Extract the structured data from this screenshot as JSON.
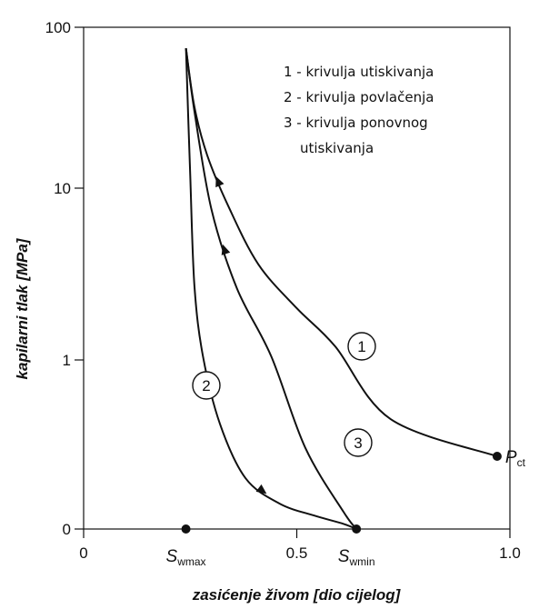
{
  "chart_data": {
    "type": "line",
    "xlabel": "zasićenje živom [dio cijelog]",
    "ylabel": "kapilarni tlak [MPa]",
    "xlim": [
      0,
      1.0
    ],
    "x_ticks": [
      "0",
      "0.5",
      "1.0"
    ],
    "y_ticks": [
      "0",
      "1",
      "10",
      "100"
    ],
    "y_scale": "log",
    "grid": false,
    "legend_position": "top-right",
    "legend": [
      "1 - krivulja utiskivanja",
      "2 - krivulja povlačenja",
      "3 - krivulja ponovnog",
      "utiskivanja"
    ],
    "series": [
      {
        "label": "1",
        "x": [
          0.97,
          0.72,
          0.59,
          0.5,
          0.41,
          0.34,
          0.29,
          0.26,
          0.24
        ],
        "y": [
          0.43,
          0.65,
          1.2,
          2.0,
          3.6,
          7.8,
          16,
          32,
          74
        ]
      },
      {
        "label": "2",
        "x": [
          0.24,
          0.25,
          0.26,
          0.28,
          0.32,
          0.38,
          0.46,
          0.54,
          0.61,
          0.64
        ],
        "y": [
          74,
          12,
          2.7,
          1.05,
          0.62,
          0.3,
          0.15,
          0.08,
          0.03,
          0
        ]
      },
      {
        "label": "3",
        "x": [
          0.64,
          0.61,
          0.52,
          0.44,
          0.36,
          0.3,
          0.26,
          0.24
        ],
        "y": [
          0,
          0.1,
          0.48,
          1.05,
          2.6,
          7.5,
          30,
          74
        ]
      }
    ],
    "points": [
      {
        "name": "S",
        "sub": "wmax",
        "x": 0.24,
        "y": 0
      },
      {
        "name": "S",
        "sub": "wmin",
        "x": 0.64,
        "y": 0
      },
      {
        "name": "P",
        "sub": "ct",
        "x": 0.97,
        "y": 0.43
      }
    ]
  }
}
